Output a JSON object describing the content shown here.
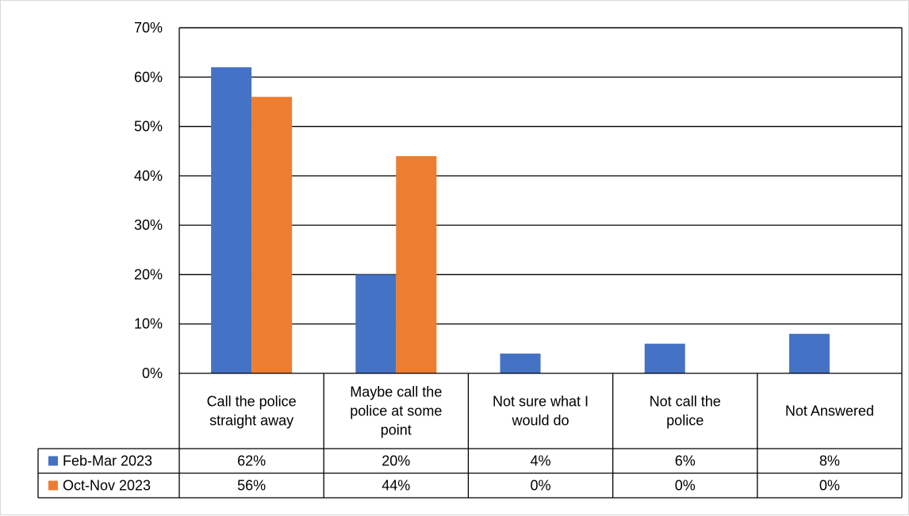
{
  "chart_data": {
    "type": "bar",
    "title": "",
    "xlabel": "",
    "ylabel": "",
    "ylim": [
      0,
      0.7
    ],
    "y_ticks": [
      "0%",
      "10%",
      "20%",
      "30%",
      "40%",
      "50%",
      "60%",
      "70%"
    ],
    "y_tick_values": [
      0,
      0.1,
      0.2,
      0.3,
      0.4,
      0.5,
      0.6,
      0.7
    ],
    "grid": true,
    "legend": "data-table",
    "categories": [
      "Call the police straight away",
      "Maybe call the police at some point",
      "Not sure what I would do",
      "Not call the police",
      "Not Answered"
    ],
    "series": [
      {
        "name": "Feb-Mar 2023",
        "color": "#4472c4",
        "values": [
          0.62,
          0.2,
          0.04,
          0.06,
          0.08
        ],
        "labels": [
          "62%",
          "20%",
          "4%",
          "6%",
          "8%"
        ]
      },
      {
        "name": "Oct-Nov 2023",
        "color": "#ed7d31",
        "values": [
          0.56,
          0.44,
          0.0,
          0.0,
          0.0
        ],
        "labels": [
          "56%",
          "44%",
          "0%",
          "0%",
          "0%"
        ]
      }
    ]
  }
}
